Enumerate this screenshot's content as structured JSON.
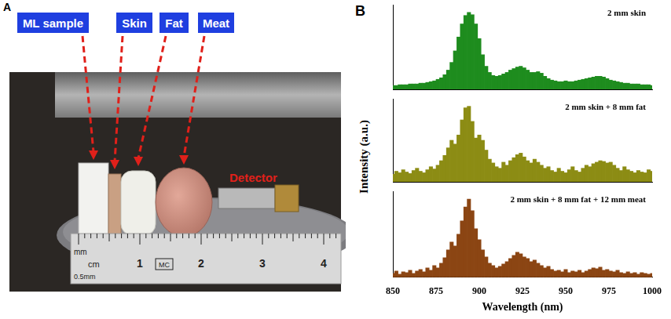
{
  "panel_a": {
    "letter": "A",
    "labels": [
      "ML sample",
      "Skin",
      "Fat",
      "Meat"
    ],
    "detector": "Detector",
    "ruler": {
      "units": [
        "mm",
        "cm",
        "0.5mm"
      ],
      "numbers": [
        "1",
        "2",
        "3",
        "4"
      ],
      "logo": "MC"
    }
  },
  "panel_b": {
    "letter": "B",
    "ylabel": "Intensity (a.u.)"
  },
  "chart_data": [
    {
      "type": "bar",
      "title": "2 mm skin",
      "color": "#1e8c1e",
      "x": [
        850,
        852,
        854,
        856,
        858,
        860,
        862,
        864,
        866,
        868,
        870,
        872,
        874,
        876,
        878,
        880,
        882,
        884,
        886,
        888,
        890,
        892,
        894,
        896,
        898,
        900,
        902,
        904,
        906,
        908,
        910,
        912,
        914,
        916,
        918,
        920,
        922,
        924,
        926,
        928,
        930,
        932,
        934,
        936,
        938,
        940,
        942,
        944,
        946,
        948,
        950,
        952,
        954,
        956,
        958,
        960,
        962,
        964,
        966,
        968,
        970,
        972,
        974,
        976,
        978,
        980,
        982,
        984,
        986,
        988,
        990,
        992,
        994,
        996,
        998,
        1000
      ],
      "values": [
        0.05,
        0.05,
        0.06,
        0.06,
        0.06,
        0.07,
        0.07,
        0.07,
        0.08,
        0.08,
        0.09,
        0.1,
        0.11,
        0.13,
        0.15,
        0.19,
        0.25,
        0.35,
        0.5,
        0.68,
        0.85,
        0.96,
        1.0,
        0.97,
        0.85,
        0.66,
        0.45,
        0.3,
        0.22,
        0.18,
        0.17,
        0.18,
        0.2,
        0.22,
        0.25,
        0.27,
        0.29,
        0.3,
        0.28,
        0.25,
        0.22,
        0.22,
        0.23,
        0.21,
        0.17,
        0.14,
        0.12,
        0.11,
        0.1,
        0.1,
        0.11,
        0.1,
        0.1,
        0.11,
        0.12,
        0.13,
        0.14,
        0.15,
        0.16,
        0.17,
        0.17,
        0.16,
        0.14,
        0.12,
        0.11,
        0.1,
        0.09,
        0.08,
        0.08,
        0.07,
        0.07,
        0.07,
        0.06,
        0.06,
        0.06,
        0.05
      ],
      "xlim": [
        850,
        1000
      ],
      "xticks": [
        850,
        875,
        900,
        925,
        950,
        975,
        1000
      ],
      "ylim": [
        0,
        1.1
      ],
      "tick_labels": false
    },
    {
      "type": "bar",
      "title": "2 mm skin + 8 mm fat",
      "color": "#8c8c14",
      "x": [
        850,
        852,
        854,
        856,
        858,
        860,
        862,
        864,
        866,
        868,
        870,
        872,
        874,
        876,
        878,
        880,
        882,
        884,
        886,
        888,
        890,
        892,
        894,
        896,
        898,
        900,
        902,
        904,
        906,
        908,
        910,
        912,
        914,
        916,
        918,
        920,
        922,
        924,
        926,
        928,
        930,
        932,
        934,
        936,
        938,
        940,
        942,
        944,
        946,
        948,
        950,
        952,
        954,
        956,
        958,
        960,
        962,
        964,
        966,
        968,
        970,
        972,
        974,
        976,
        978,
        980,
        982,
        984,
        986,
        988,
        990,
        992,
        994,
        996,
        998,
        1000
      ],
      "values": [
        0.1,
        0.14,
        0.12,
        0.16,
        0.13,
        0.11,
        0.15,
        0.18,
        0.14,
        0.12,
        0.16,
        0.2,
        0.17,
        0.22,
        0.28,
        0.35,
        0.45,
        0.55,
        0.5,
        0.62,
        0.82,
        0.98,
        1.0,
        0.8,
        0.58,
        0.62,
        0.55,
        0.42,
        0.3,
        0.25,
        0.2,
        0.18,
        0.26,
        0.22,
        0.28,
        0.32,
        0.36,
        0.38,
        0.33,
        0.28,
        0.25,
        0.3,
        0.26,
        0.22,
        0.18,
        0.2,
        0.15,
        0.13,
        0.18,
        0.14,
        0.12,
        0.16,
        0.2,
        0.15,
        0.13,
        0.18,
        0.22,
        0.2,
        0.24,
        0.26,
        0.28,
        0.27,
        0.25,
        0.26,
        0.22,
        0.18,
        0.15,
        0.2,
        0.16,
        0.14,
        0.12,
        0.15,
        0.13,
        0.12,
        0.16,
        0.14
      ],
      "xlim": [
        850,
        1000
      ],
      "xticks": [
        850,
        875,
        900,
        925,
        950,
        975,
        1000
      ],
      "ylim": [
        0,
        1.1
      ],
      "tick_labels": false
    },
    {
      "type": "bar",
      "title": "2 mm skin + 8 mm fat + 12 mm meat",
      "color": "#8b4513",
      "x": [
        850,
        852,
        854,
        856,
        858,
        860,
        862,
        864,
        866,
        868,
        870,
        872,
        874,
        876,
        878,
        880,
        882,
        884,
        886,
        888,
        890,
        892,
        894,
        896,
        898,
        900,
        902,
        904,
        906,
        908,
        910,
        912,
        914,
        916,
        918,
        920,
        922,
        924,
        926,
        928,
        930,
        932,
        934,
        936,
        938,
        940,
        942,
        944,
        946,
        948,
        950,
        952,
        954,
        956,
        958,
        960,
        962,
        964,
        966,
        968,
        970,
        972,
        974,
        976,
        978,
        980,
        982,
        984,
        986,
        988,
        990,
        992,
        994,
        996,
        998,
        1000
      ],
      "values": [
        0.05,
        0.08,
        0.04,
        0.07,
        0.06,
        0.09,
        0.05,
        0.08,
        0.1,
        0.07,
        0.12,
        0.09,
        0.15,
        0.12,
        0.18,
        0.25,
        0.35,
        0.45,
        0.4,
        0.55,
        0.72,
        0.9,
        1.0,
        0.85,
        0.62,
        0.48,
        0.35,
        0.26,
        0.18,
        0.15,
        0.12,
        0.14,
        0.17,
        0.2,
        0.24,
        0.28,
        0.32,
        0.3,
        0.26,
        0.24,
        0.2,
        0.22,
        0.18,
        0.15,
        0.12,
        0.14,
        0.1,
        0.08,
        0.09,
        0.07,
        0.1,
        0.06,
        0.08,
        0.07,
        0.09,
        0.06,
        0.08,
        0.1,
        0.12,
        0.11,
        0.13,
        0.09,
        0.1,
        0.08,
        0.07,
        0.09,
        0.06,
        0.05,
        0.07,
        0.05,
        0.06,
        0.04,
        0.06,
        0.05,
        0.04,
        0.05
      ],
      "xlim": [
        850,
        1000
      ],
      "xticks": [
        850,
        875,
        900,
        925,
        950,
        975,
        1000
      ],
      "ylim": [
        0,
        1.1
      ],
      "xlabel": "Wavelength (nm)",
      "tick_labels": "x"
    }
  ]
}
